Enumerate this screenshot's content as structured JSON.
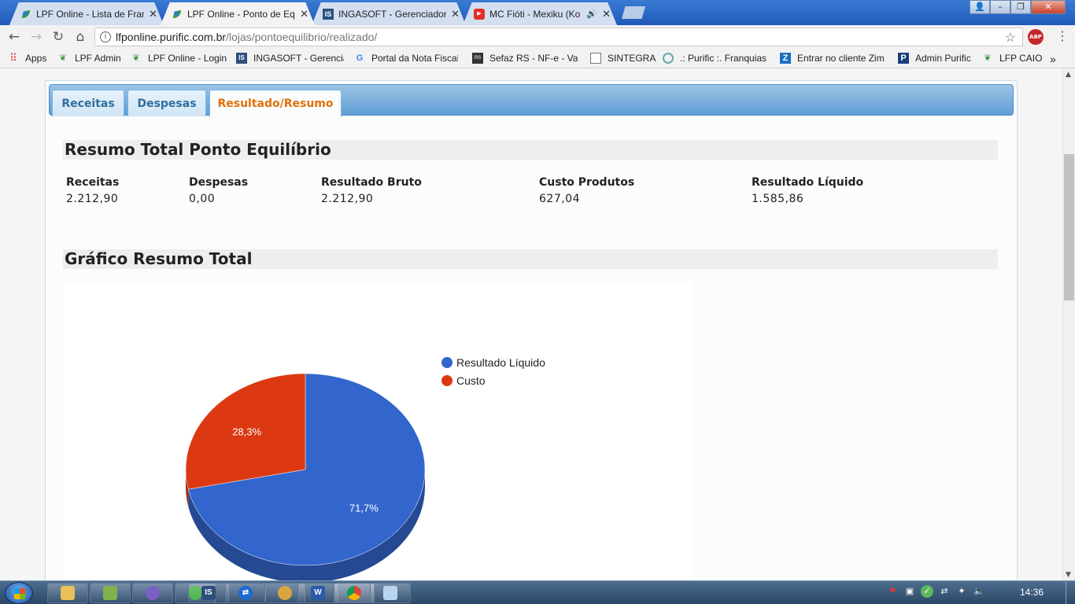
{
  "browser": {
    "tabs": [
      {
        "title": "LPF Online - Lista de Fran",
        "icon": "lpf-leaf-icon"
      },
      {
        "title": "LPF Online - Ponto de Eq",
        "icon": "lpf-leaf-icon",
        "active": true
      },
      {
        "title": "INGASOFT - Gerenciador",
        "icon": "ingasoft-icon"
      },
      {
        "title": "MC Fióti - Mexiku (Ko",
        "icon": "youtube-icon"
      }
    ],
    "url_host": "lfponline.purific.com.br",
    "url_path": "/lojas/pontoequilibrio/realizado/",
    "window_controls": {
      "minimize": "–",
      "restore": "❐",
      "close": "✕"
    },
    "bookmarks": [
      {
        "label": "Apps",
        "icon": "apps-grid-icon"
      },
      {
        "label": "LPF Admin",
        "icon": "lpf-leaf-icon"
      },
      {
        "label": "LPF Online - Login",
        "icon": "lpf-leaf-icon"
      },
      {
        "label": "INGASOFT - Gerencia",
        "icon": "ingasoft-icon"
      },
      {
        "label": "Portal da Nota Fiscal",
        "icon": "google-icon"
      },
      {
        "label": "Sefaz RS - NF-e - Vali",
        "icon": "sefaz-icon"
      },
      {
        "label": "SINTEGRA",
        "icon": "page-icon"
      },
      {
        "label": ".: Purific :. Franquias d",
        "icon": "purific-icon"
      },
      {
        "label": "Entrar no cliente Zim",
        "icon": "zimbra-icon"
      },
      {
        "label": "Admin Purific",
        "icon": "admin-icon"
      },
      {
        "label": "LFP CAIO",
        "icon": "lpf-leaf-icon"
      }
    ],
    "more_bookmarks": "»"
  },
  "page": {
    "tabs": [
      "Receitas",
      "Despesas",
      "Resultado/Resumo"
    ],
    "active_tab": 2,
    "summary_title": "Resumo Total Ponto Equilíbrio",
    "stats": [
      {
        "label": "Receitas",
        "value": "2.212,90"
      },
      {
        "label": "Despesas",
        "value": "0,00"
      },
      {
        "label": "Resultado Bruto",
        "value": "2.212,90"
      },
      {
        "label": "Custo Produtos",
        "value": "627,04"
      },
      {
        "label": "Resultado Líquido",
        "value": "1.585,86"
      }
    ],
    "chart_title": "Gráfico Resumo Total"
  },
  "chart_data": {
    "type": "pie",
    "title": "",
    "series": [
      {
        "name": "Resultado Líquido",
        "value": 71.7,
        "label": "71,7%",
        "color": "#3366cc"
      },
      {
        "name": "Custo",
        "value": 28.3,
        "label": "28,3%",
        "color": "#dc3912"
      }
    ],
    "legend_position": "right",
    "style": "3d"
  },
  "taskbar": {
    "clock": "14:36",
    "items": [
      "explorer",
      "windows-explorer",
      "app-circle",
      "app-green",
      "ingasoft",
      "teamviewer",
      "paint",
      "word",
      "chrome",
      "notepad"
    ]
  }
}
